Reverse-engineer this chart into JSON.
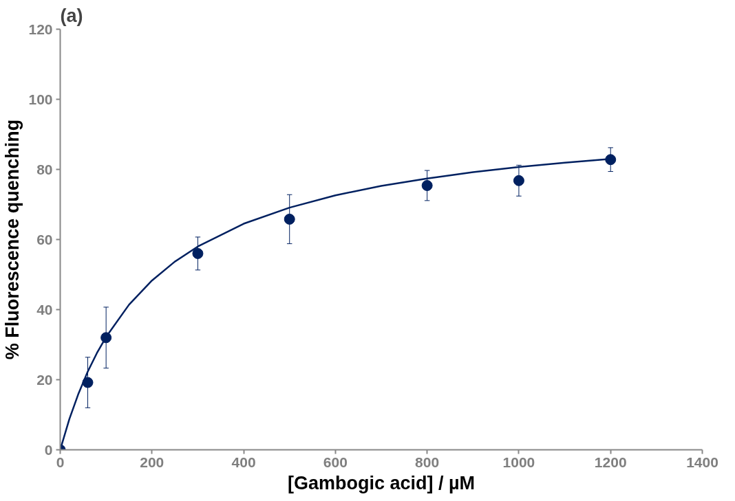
{
  "chart_data": {
    "type": "scatter",
    "xlabel": "[Gambogic acid] / µM",
    "ylabel": "% Fluorescence quenching",
    "annotations": [
      "(a)"
    ],
    "x": [
      0,
      60,
      100,
      300,
      500,
      800,
      1000,
      1200
    ],
    "series": [
      {
        "color": "#002060",
        "marker": "circle",
        "values": [
          0,
          19.2,
          32,
          56,
          65.8,
          75.4,
          76.8,
          82.8
        ],
        "errors": [
          null,
          7.2,
          8.7,
          4.7,
          7,
          4.3,
          4.4,
          3.4
        ]
      },
      {
        "type": "line",
        "color": "#002060",
        "marker": "none",
        "line_style": "solid",
        "x": [
          0,
          20,
          40,
          60,
          80,
          100,
          150,
          200,
          250,
          300,
          400,
          500,
          600,
          700,
          800,
          900,
          1000,
          1100,
          1200
        ],
        "values": [
          0,
          8.8,
          16.1,
          22.3,
          27.6,
          32.2,
          41.4,
          48.3,
          53.7,
          58.0,
          64.5,
          69.1,
          72.6,
          75.3,
          77.4,
          79.2,
          80.7,
          81.9,
          83.0
        ]
      }
    ],
    "xlim": [
      0,
      1400
    ],
    "xticks": [
      0,
      200,
      400,
      600,
      800,
      1000,
      1200,
      1400
    ],
    "ylim": [
      0,
      120
    ],
    "yticks": [
      0,
      20,
      40,
      60,
      80,
      100,
      120
    ],
    "grid": false
  }
}
